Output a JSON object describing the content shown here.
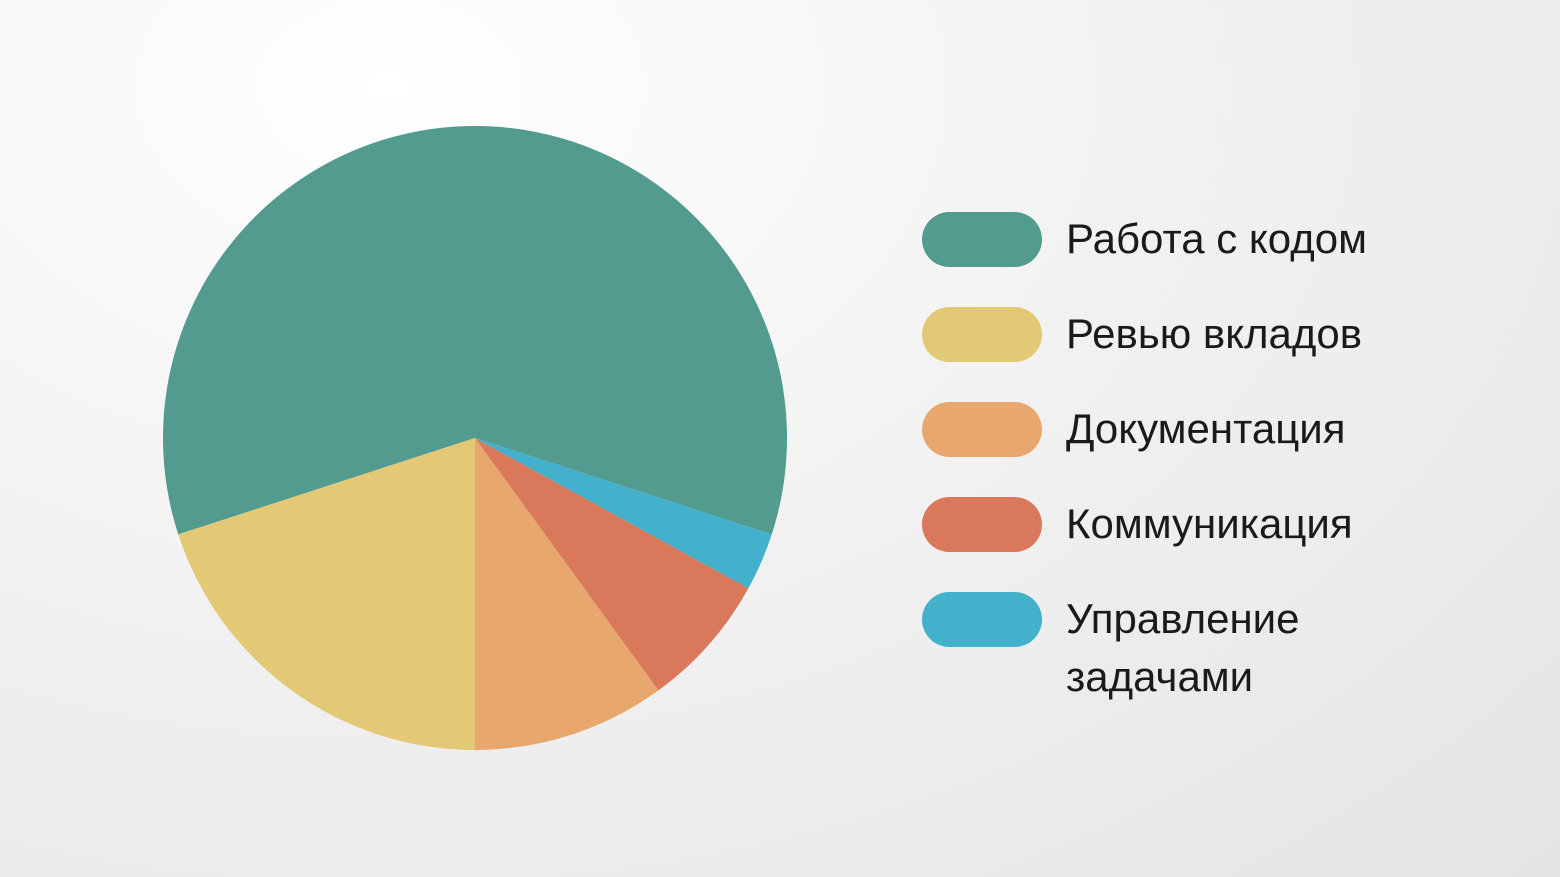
{
  "chart_data": {
    "type": "pie",
    "categories": [
      "Работа с кодом",
      "Ревью вкладов",
      "Документация",
      "Коммуникация",
      "Управление задачами"
    ],
    "values": [
      60,
      20,
      10,
      7,
      3
    ],
    "colors": [
      "#529b8e",
      "#e3c876",
      "#e8a76d",
      "#d9785a",
      "#43b1cc"
    ]
  }
}
